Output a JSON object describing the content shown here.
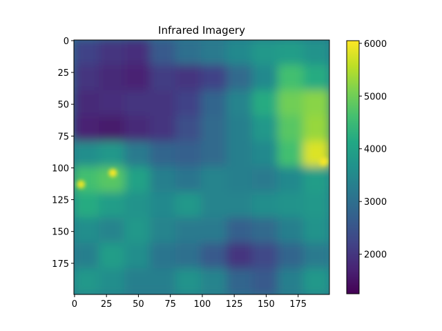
{
  "chart_data": {
    "type": "heatmap",
    "title": "Infrared Imagery",
    "xlabel": "",
    "ylabel": "",
    "x_range": [
      0,
      199
    ],
    "y_range": [
      0,
      199
    ],
    "x_ticks": [
      0,
      25,
      50,
      75,
      100,
      125,
      150,
      175
    ],
    "y_ticks": [
      0,
      25,
      50,
      75,
      100,
      125,
      150,
      175
    ],
    "y_axis_inverted": true,
    "colormap": "viridis",
    "color_range": [
      1250,
      6050
    ],
    "colorbar_ticks": [
      2000,
      3000,
      4000,
      5000,
      6000
    ],
    "value_grid": {
      "note_rows": "approximate values sampled on a 10x10 grid, rows top to bottom (y=0..199), columns left to right (x=0..199)",
      "rows": [
        [
          2200,
          2000,
          1900,
          2600,
          3000,
          3200,
          3500,
          3800,
          3900,
          3700
        ],
        [
          2000,
          1800,
          1700,
          2100,
          2000,
          2200,
          2900,
          3500,
          4600,
          4200
        ],
        [
          1800,
          1900,
          2000,
          2000,
          2200,
          2800,
          3400,
          4200,
          5000,
          5200
        ],
        [
          1700,
          1600,
          1800,
          2000,
          2400,
          2900,
          3300,
          3800,
          4800,
          5300
        ],
        [
          3600,
          3800,
          3200,
          2800,
          2700,
          2900,
          3300,
          3500,
          4600,
          5800
        ],
        [
          4600,
          4800,
          4000,
          3300,
          3100,
          3400,
          3300,
          3200,
          3500,
          3900
        ],
        [
          4200,
          3900,
          3700,
          3500,
          3800,
          3400,
          3400,
          3600,
          3700,
          3800
        ],
        [
          3600,
          3400,
          3800,
          3400,
          3200,
          3200,
          2700,
          2900,
          3300,
          3700
        ],
        [
          3300,
          3900,
          3600,
          3100,
          3000,
          2600,
          2000,
          2300,
          2800,
          3200
        ],
        [
          3800,
          3600,
          3300,
          3300,
          3700,
          3400,
          2800,
          2600,
          3300,
          3800
        ]
      ]
    },
    "hot_spots": [
      {
        "x": 5,
        "y": 113,
        "value": 5900
      },
      {
        "x": 30,
        "y": 104,
        "value": 6000
      },
      {
        "x": 195,
        "y": 95,
        "value": 6000
      }
    ]
  }
}
